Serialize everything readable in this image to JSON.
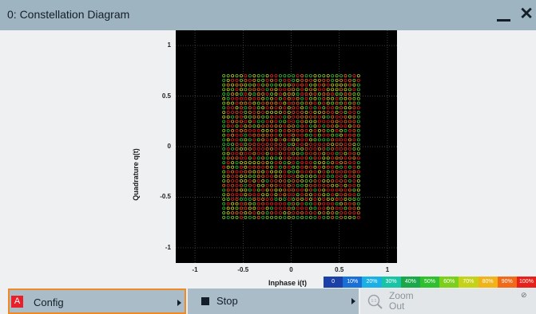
{
  "window": {
    "title": "0: Constellation Diagram",
    "minimize_icon": "minimize-icon",
    "close_icon": "close-icon",
    "close_glyph": "✕"
  },
  "chart_data": {
    "type": "scatter",
    "xlabel": "Inphase i(t)",
    "ylabel": "Quadrature q(t)",
    "xlim": [
      -1.2,
      1.1
    ],
    "ylim": [
      -1.15,
      1.15
    ],
    "xticks": [
      -1,
      -0.5,
      0,
      0.5,
      1
    ],
    "xtick_labels": [
      "-1",
      "-0.5",
      "0",
      "0.5",
      "1"
    ],
    "yticks": [
      1,
      0.5,
      0,
      -0.5,
      -1
    ],
    "ytick_labels": [
      "1",
      "0.5",
      "0",
      "-0.5",
      "-1"
    ],
    "grid": true,
    "background": "#000000",
    "constellation": {
      "points_per_axis": 32,
      "extent": [
        -0.7,
        0.7
      ],
      "marker": "circle-outline"
    },
    "colorbar": {
      "labels": [
        "0",
        "10%",
        "20%",
        "30%",
        "40%",
        "50%",
        "60%",
        "70%",
        "80%",
        "90%",
        "100%"
      ],
      "colors": [
        "#1c3fa8",
        "#1a6fd6",
        "#1ab0e6",
        "#19c4a6",
        "#1aa84a",
        "#2fbf2f",
        "#7ccf1a",
        "#c4d21a",
        "#f0b41a",
        "#f06a1a",
        "#e8201a"
      ]
    }
  },
  "buttons": {
    "config_label": "Config",
    "config_badge": "A",
    "stop_label": "Stop",
    "zoom_label_line1": "Zoom",
    "zoom_label_line2": "Out",
    "zoom_icon_text": "1:1",
    "disabled_symbol": "⊘"
  },
  "colors": {
    "titlebar": "#9eb4c1",
    "accent_border": "#f08a24",
    "badge_red": "#e8202a"
  }
}
